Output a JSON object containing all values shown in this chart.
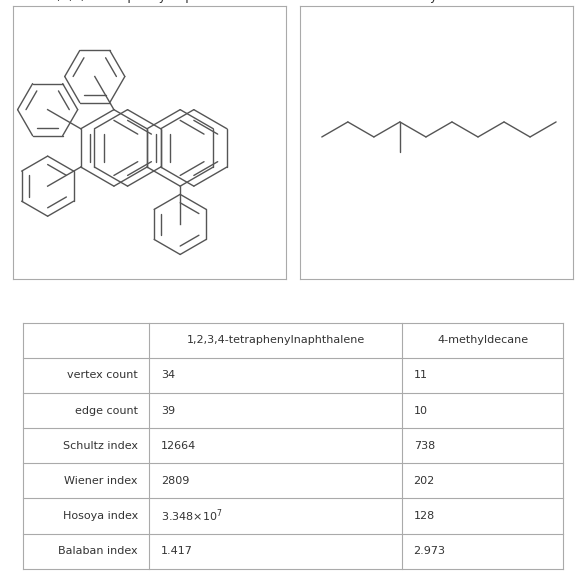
{
  "title_row": [
    "",
    "1,2,3,4-tetraphenylnaphthalene",
    "4-methyldecane"
  ],
  "row_labels": [
    "vertex count",
    "edge count",
    "Schultz index",
    "Wiener index",
    "Hosoya index",
    "Balaban index"
  ],
  "col1_values": [
    "34",
    "39",
    "12664",
    "2809",
    "3.348×10⁷",
    "1.417"
  ],
  "col2_values": [
    "11",
    "10",
    "738",
    "202",
    "128",
    "2.973"
  ],
  "mol1_name": "1,2,3,4-tetraphenylnaphthalene",
  "mol2_name": "4-methyldecane",
  "bg_color": "#ffffff",
  "border_color": "#aaaaaa",
  "text_color": "#333333",
  "font_size": 9,
  "title_font_size": 9,
  "hosoya_superscript": "7"
}
